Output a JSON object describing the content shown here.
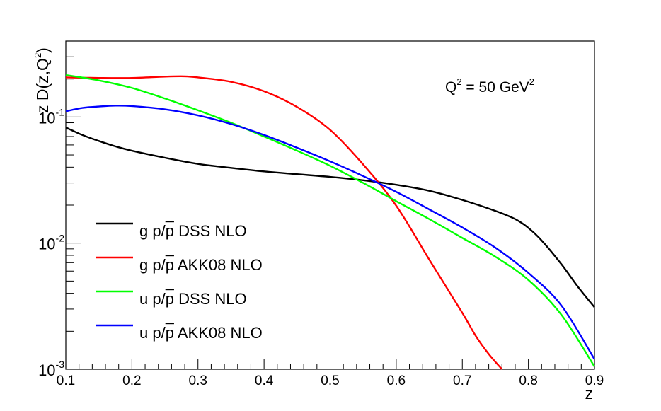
{
  "chart_data": {
    "type": "line",
    "xlabel": "z",
    "ylabel_main": "z D(z,Q",
    "ylabel_sup": "2",
    "ylabel_close": ")",
    "xlim": [
      0.1,
      0.9
    ],
    "ylim": [
      0.001,
      0.4
    ],
    "yscale": "log",
    "grid": false,
    "legend_position": "lower-left",
    "x_ticks": [
      "0.1",
      "0.2",
      "0.3",
      "0.4",
      "0.5",
      "0.6",
      "0.7",
      "0.8",
      "0.9"
    ],
    "y_ticks": [
      {
        "value": 0.001,
        "base": "10",
        "exp": "-3"
      },
      {
        "value": 0.01,
        "base": "10",
        "exp": "-2"
      },
      {
        "value": 0.1,
        "base": "10",
        "exp": "-1"
      }
    ],
    "annotation": {
      "q": "Q",
      "q_sup": "2",
      "value": " = 50 GeV",
      "value_sup": "2"
    },
    "series": [
      {
        "name_prefix": "g p/",
        "name_bar": "p",
        "name_suffix": " DSS NLO",
        "color": "#000000",
        "x": [
          0.1,
          0.125,
          0.15,
          0.175,
          0.2,
          0.25,
          0.3,
          0.35,
          0.4,
          0.45,
          0.5,
          0.55,
          0.6,
          0.65,
          0.7,
          0.75,
          0.78,
          0.8,
          0.82,
          0.85,
          0.875,
          0.9
        ],
        "y": [
          0.0825,
          0.072,
          0.0645,
          0.0585,
          0.054,
          0.0475,
          0.0425,
          0.0395,
          0.037,
          0.0352,
          0.0335,
          0.0315,
          0.029,
          0.026,
          0.022,
          0.018,
          0.0155,
          0.0132,
          0.0105,
          0.0068,
          0.0045,
          0.0031
        ]
      },
      {
        "name_prefix": "g p/",
        "name_bar": "p",
        "name_suffix": " AKK08 NLO",
        "color": "#ff0000",
        "x": [
          0.1,
          0.15,
          0.2,
          0.25,
          0.28,
          0.3,
          0.35,
          0.4,
          0.45,
          0.5,
          0.55,
          0.6,
          0.65,
          0.7,
          0.72,
          0.74,
          0.76
        ],
        "y": [
          0.206,
          0.204,
          0.204,
          0.209,
          0.21,
          0.206,
          0.19,
          0.16,
          0.12,
          0.079,
          0.042,
          0.0198,
          0.0074,
          0.0028,
          0.00185,
          0.00132,
          0.001
        ]
      },
      {
        "name_prefix": "u p/",
        "name_bar": "p",
        "name_suffix": " DSS NLO",
        "color": "#00ff00",
        "x": [
          0.1,
          0.15,
          0.2,
          0.25,
          0.3,
          0.35,
          0.4,
          0.45,
          0.5,
          0.55,
          0.6,
          0.65,
          0.7,
          0.75,
          0.8,
          0.85,
          0.9
        ],
        "y": [
          0.215,
          0.195,
          0.17,
          0.14,
          0.113,
          0.09,
          0.07,
          0.054,
          0.041,
          0.03,
          0.0215,
          0.0155,
          0.011,
          0.0078,
          0.0051,
          0.0027,
          0.00105
        ]
      },
      {
        "name_prefix": "u p/",
        "name_bar": "p",
        "name_suffix": " AKK08 NLO",
        "color": "#0000ff",
        "x": [
          0.1,
          0.125,
          0.15,
          0.175,
          0.2,
          0.25,
          0.3,
          0.35,
          0.4,
          0.45,
          0.5,
          0.55,
          0.6,
          0.65,
          0.7,
          0.75,
          0.8,
          0.85,
          0.9
        ],
        "y": [
          0.111,
          0.118,
          0.121,
          0.123,
          0.122,
          0.115,
          0.103,
          0.088,
          0.072,
          0.057,
          0.0445,
          0.034,
          0.0255,
          0.0185,
          0.0133,
          0.0092,
          0.0058,
          0.0032,
          0.0012
        ]
      }
    ]
  }
}
